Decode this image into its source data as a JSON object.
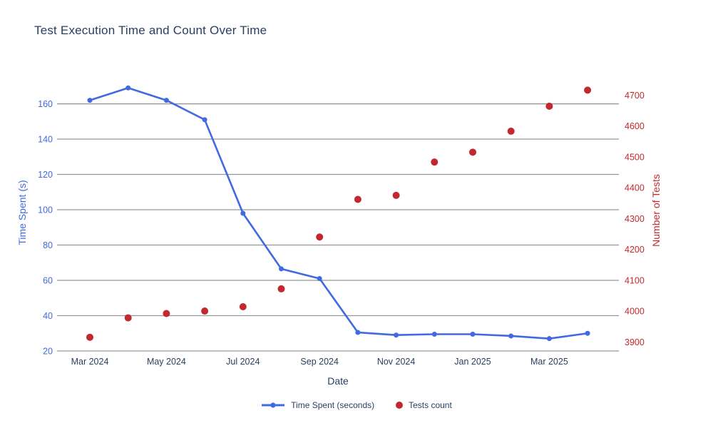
{
  "chart_data": {
    "type": "line",
    "title": "Test Execution Time and Count Over Time",
    "xlabel": "Date",
    "x": [
      "Mar 2024",
      "Apr 2024",
      "May 2024",
      "Jun 2024",
      "Jul 2024",
      "Aug 2024",
      "Sep 2024",
      "Oct 2024",
      "Nov 2024",
      "Dec 2024",
      "Jan 2025",
      "Feb 2025",
      "Mar 2025",
      "Apr 2025"
    ],
    "x_tick_labels": [
      "Mar 2024",
      "May 2024",
      "Jul 2024",
      "Sep 2024",
      "Nov 2024",
      "Jan 2025",
      "Mar 2025"
    ],
    "series": [
      {
        "name": "Time Spent (seconds)",
        "type": "line+markers",
        "yaxis": "left",
        "color": "#4169E1",
        "values": [
          162,
          169,
          162,
          151,
          98,
          66.5,
          61,
          30.5,
          29,
          29.5,
          29.5,
          28.5,
          27,
          30
        ]
      },
      {
        "name": "Tests count",
        "type": "scatter",
        "yaxis": "right",
        "color": "#C1292E",
        "values": [
          3915,
          3978,
          3992,
          4000,
          4014,
          4072,
          4240,
          4362,
          4375,
          4483,
          4515,
          4583,
          4664,
          4716
        ]
      }
    ],
    "left_axis": {
      "title": "Time Spent (s)",
      "color": "#4169E1",
      "ticks": [
        20,
        40,
        60,
        80,
        100,
        120,
        140,
        160
      ],
      "range": [
        20,
        175
      ]
    },
    "right_axis": {
      "title": "Number of Tests",
      "color": "#C1292E",
      "ticks": [
        3900,
        4000,
        4100,
        4200,
        4300,
        4400,
        4500,
        4600,
        4700
      ],
      "range": [
        3870,
        4750
      ]
    },
    "grid": true,
    "gridline_color": "#969696",
    "text_color": "#2a3f5f",
    "background": "#ffffff",
    "legend_position": "bottom-center"
  }
}
